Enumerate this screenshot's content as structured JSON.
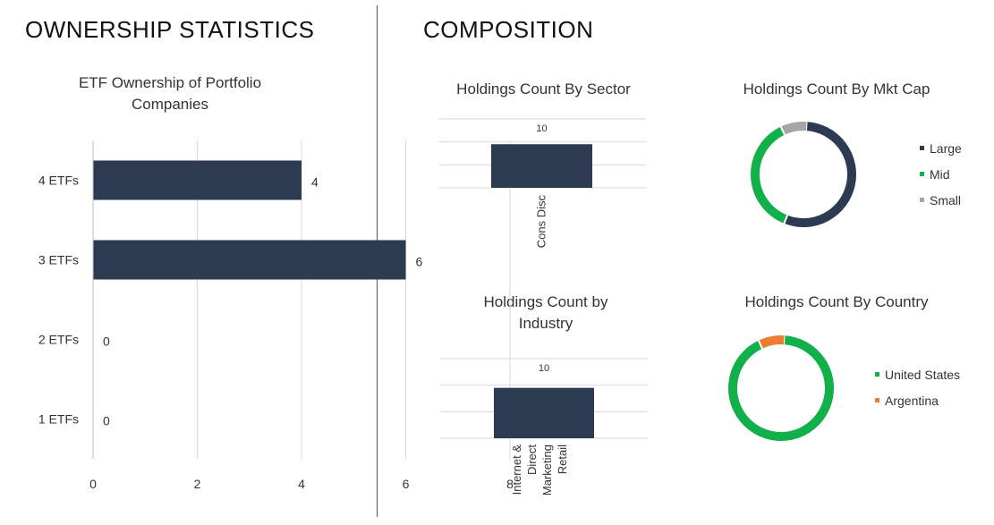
{
  "sections": {
    "left_title": "OWNERSHIP STATISTICS",
    "right_title": "COMPOSITION"
  },
  "colors": {
    "navy": "#2d3b52",
    "green": "#12b04a",
    "gray": "#a6a6a6",
    "orange": "#ec7c30"
  },
  "chart_data": [
    {
      "id": "etf-ownership",
      "type": "bar",
      "orientation": "horizontal",
      "title": "ETF Ownership of Portfolio Companies",
      "categories": [
        "4 ETFs",
        "3 ETFs",
        "2 ETFs",
        "1 ETFs"
      ],
      "values": [
        4,
        6,
        0,
        0
      ],
      "data_labels": [
        "4",
        "6",
        "0",
        "0"
      ],
      "xlim": [
        0,
        8
      ],
      "x_ticks": [
        "0",
        "2",
        "4",
        "6",
        "8"
      ],
      "grid": true
    },
    {
      "id": "sector",
      "type": "bar",
      "title": "Holdings Count By Sector",
      "categories": [
        "Cons Disc"
      ],
      "values": [
        10
      ],
      "data_labels": [
        "10"
      ],
      "grid": true
    },
    {
      "id": "mktcap",
      "type": "pie",
      "donut": true,
      "title": "Holdings Count By Mkt Cap",
      "labels": [
        "Large",
        "Mid",
        "Small"
      ],
      "values": [
        0.55,
        0.37,
        0.08
      ],
      "legend": "right"
    },
    {
      "id": "industry",
      "type": "bar",
      "title": "Holdings Count by Industry",
      "categories": [
        "Internet & Direct Marketing Retail"
      ],
      "category_lines": [
        "Internet &",
        "Direct",
        "Marketing",
        "Retail"
      ],
      "values": [
        10
      ],
      "data_labels": [
        "10"
      ],
      "grid": true
    },
    {
      "id": "country",
      "type": "pie",
      "donut": true,
      "title": "Holdings Count By Country",
      "labels": [
        "United States",
        "Argentina"
      ],
      "values": [
        0.92,
        0.08
      ],
      "legend": "right"
    }
  ]
}
